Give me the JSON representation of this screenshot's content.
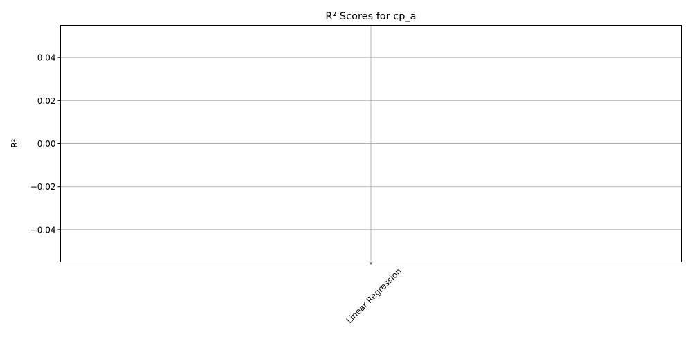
{
  "chart_data": {
    "type": "bar",
    "title": "R² Scores for cp_a",
    "xlabel": "",
    "ylabel": "R²",
    "categories": [
      "Linear Regression"
    ],
    "values": [
      null
    ],
    "ylim": [
      -0.055,
      0.055
    ],
    "yticks": [
      -0.04,
      -0.02,
      0.0,
      0.02,
      0.04
    ],
    "ytick_labels": [
      "−0.04",
      "−0.02",
      "0.00",
      "0.02",
      "0.04"
    ],
    "grid": true,
    "x_tick_rotation_deg": 45
  }
}
